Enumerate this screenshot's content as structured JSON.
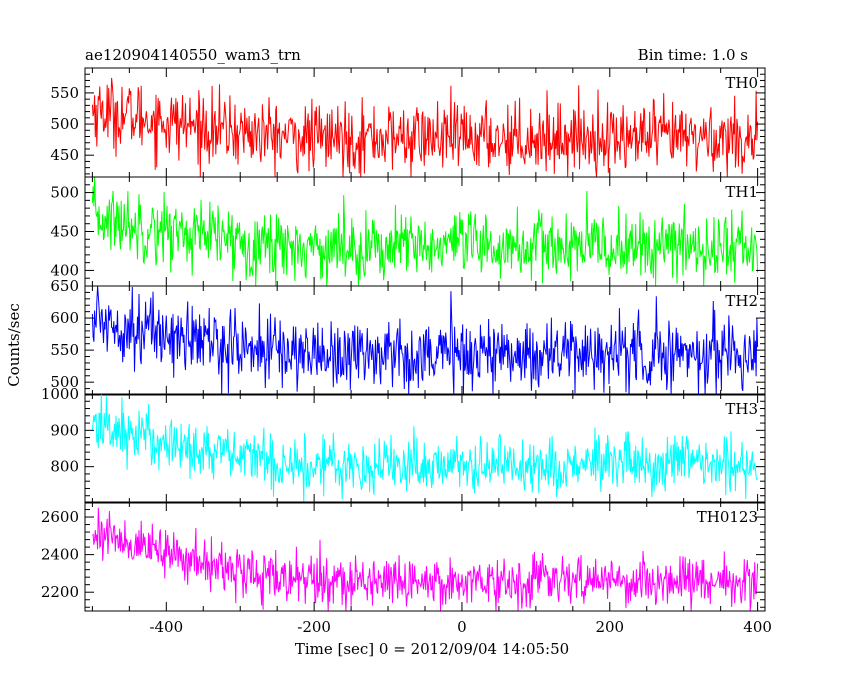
{
  "header": {
    "title": "ae120904140550_wam3_trn",
    "bin_time": "Bin time: 1.0 s"
  },
  "chart_data": {
    "type": "line",
    "ylabel": "Counts/sec",
    "xlabel": "Time [sec] 0 = 2012/09/04 14:05:50",
    "xlim": [
      -510,
      410
    ],
    "x_ticks": [
      -400,
      -200,
      0,
      200,
      400
    ],
    "x_range": [
      -500,
      400
    ],
    "bin_time_s": 1.0,
    "panels": [
      {
        "name": "TH0",
        "color": "#ff0000",
        "ylim": [
          415,
          590
        ],
        "y_ticks": [
          450,
          500,
          550
        ],
        "start": 525,
        "end": 478,
        "noise": 28
      },
      {
        "name": "TH1",
        "color": "#00ff00",
        "ylim": [
          380,
          520
        ],
        "y_ticks": [
          400,
          450,
          500
        ],
        "start": 470,
        "end": 430,
        "noise": 22
      },
      {
        "name": "TH2",
        "color": "#0000ff",
        "ylim": [
          480,
          650
        ],
        "y_ticks": [
          500,
          550,
          600,
          650
        ],
        "start": 600,
        "end": 545,
        "noise": 28
      },
      {
        "name": "TH3",
        "color": "#00ffff",
        "ylim": [
          700,
          1000
        ],
        "y_ticks": [
          800,
          900,
          1000
        ],
        "start": 920,
        "end": 805,
        "noise": 40
      },
      {
        "name": "TH0123",
        "color": "#ff00ff",
        "ylim": [
          2100,
          2680
        ],
        "y_ticks": [
          2200,
          2400,
          2600
        ],
        "start": 2530,
        "end": 2260,
        "noise": 65
      }
    ]
  }
}
